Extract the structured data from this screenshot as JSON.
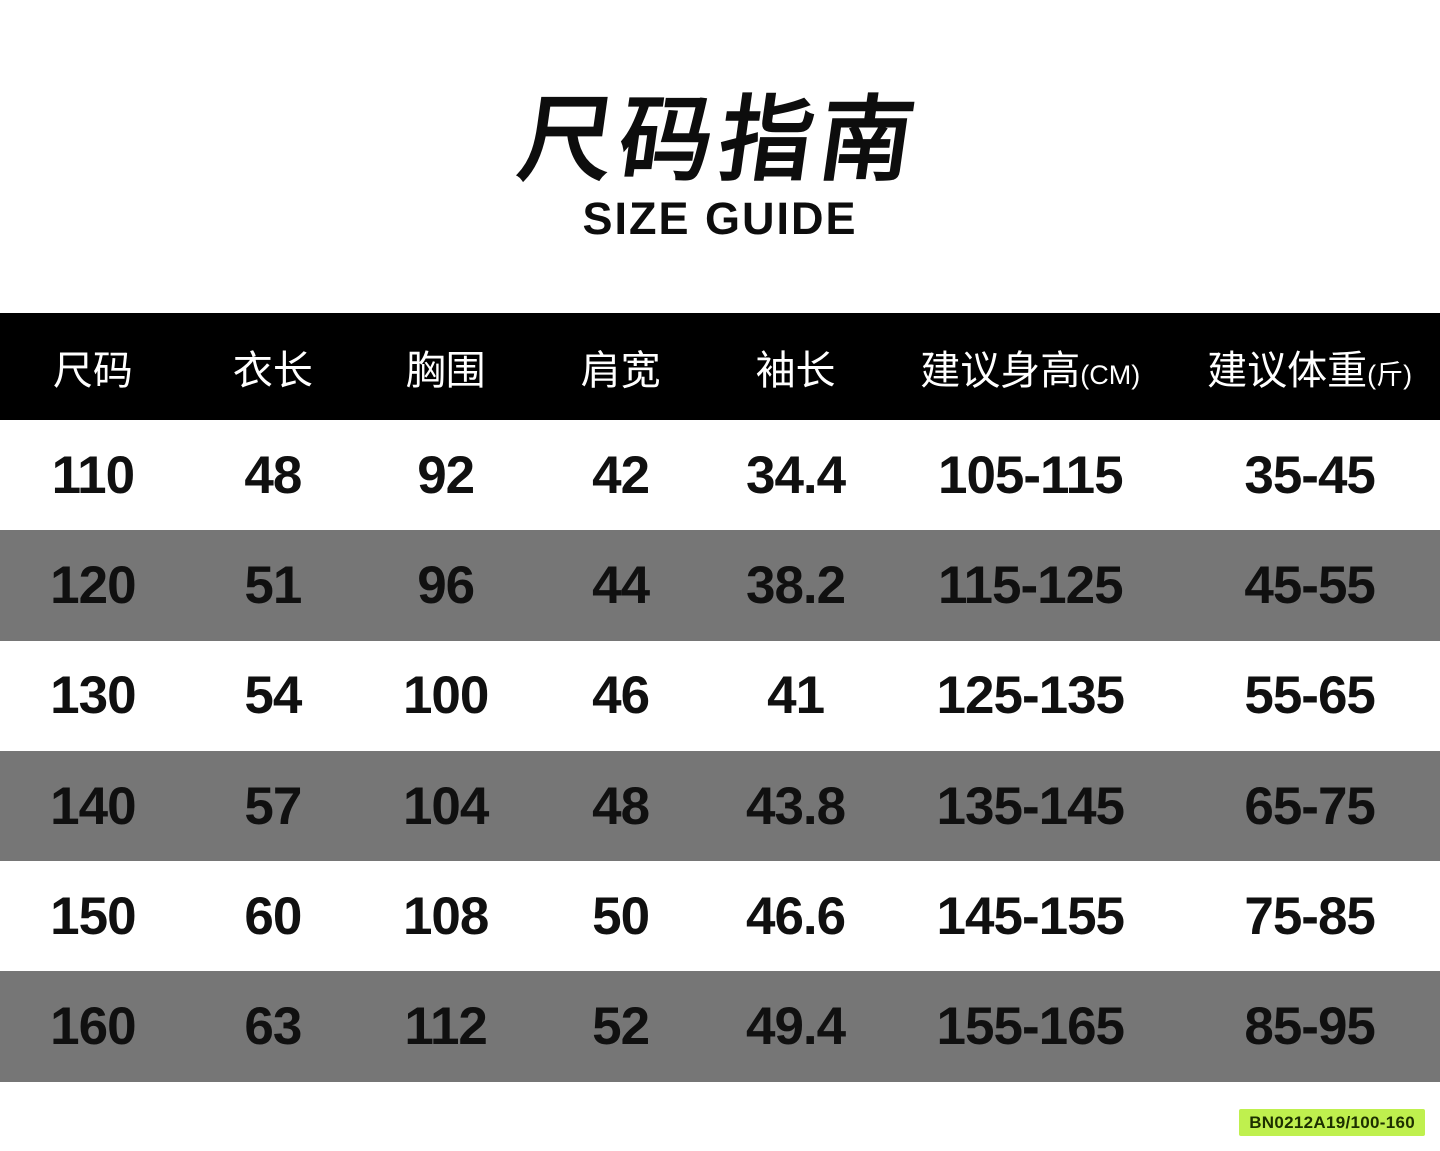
{
  "title": {
    "zh": "尺码指南",
    "en": "SIZE GUIDE"
  },
  "table": {
    "header_bg": "#000000",
    "header_fg": "#ffffff",
    "row_bg": "#ffffff",
    "row_alt_bg": "#767676",
    "columns": [
      {
        "label": "尺码",
        "unit": ""
      },
      {
        "label": "衣长",
        "unit": ""
      },
      {
        "label": "胸围",
        "unit": ""
      },
      {
        "label": "肩宽",
        "unit": ""
      },
      {
        "label": "袖长",
        "unit": ""
      },
      {
        "label": "建议身高",
        "unit": "(CM)"
      },
      {
        "label": "建议体重",
        "unit": "(斤)"
      }
    ],
    "rows": [
      [
        "110",
        "48",
        "92",
        "42",
        "34.4",
        "105-115",
        "35-45"
      ],
      [
        "120",
        "51",
        "96",
        "44",
        "38.2",
        "115-125",
        "45-55"
      ],
      [
        "130",
        "54",
        "100",
        "46",
        "41",
        "125-135",
        "55-65"
      ],
      [
        "140",
        "57",
        "104",
        "48",
        "43.8",
        "135-145",
        "65-75"
      ],
      [
        "150",
        "60",
        "108",
        "50",
        "46.6",
        "145-155",
        "75-85"
      ],
      [
        "160",
        "63",
        "112",
        "52",
        "49.4",
        "155-165",
        "85-95"
      ]
    ]
  },
  "footer": {
    "product_code": "BN0212A19/100-160",
    "badge_bg": "#bff04e",
    "badge_fg": "#1d3000"
  }
}
